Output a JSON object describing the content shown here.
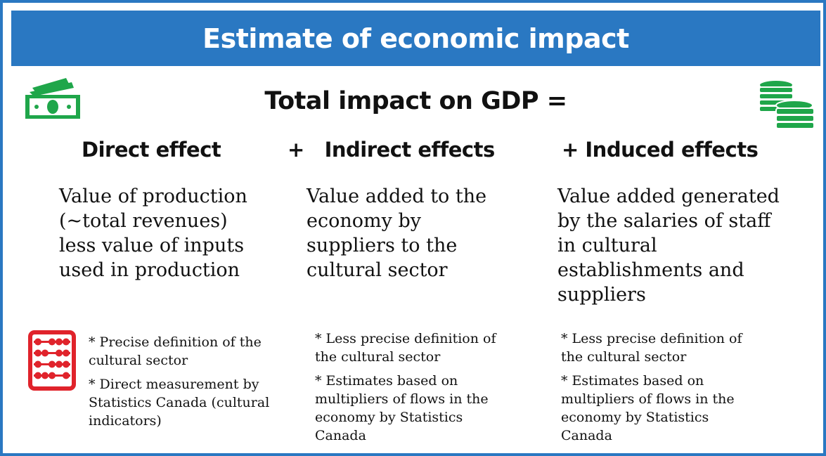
{
  "title": "Estimate of economic impact",
  "equation": "Total impact on GDP =",
  "columns": [
    {
      "heading": "Direct effect",
      "description": "Value of production (~total revenues) less value of inputs used in production",
      "notes": [
        "* Precise definition of the cultural sector",
        "* Direct measurement by Statistics Canada (cultural indicators)"
      ]
    },
    {
      "heading": "+   Indirect effects",
      "description": "Value added to the economy by suppliers to the cultural sector",
      "notes": [
        "* Less precise definition of the cultural sector",
        "* Estimates based on multipliers of flows in the economy by Statistics Canada"
      ]
    },
    {
      "heading": "+ Induced effects",
      "description": "Value added generated by the salaries of staff in cultural establishments and suppliers",
      "notes": [
        "* Less precise definition of the cultural sector",
        "* Estimates based on multipliers of flows in the economy by Statistics Canada"
      ]
    }
  ],
  "icons": {
    "money": "banknotes-icon",
    "coins": "coin-stacks-icon",
    "abacus": "abacus-icon"
  },
  "colors": {
    "banner": "#2a78c2",
    "green_icons": "#1fa64a",
    "abacus": "#e0232b"
  }
}
